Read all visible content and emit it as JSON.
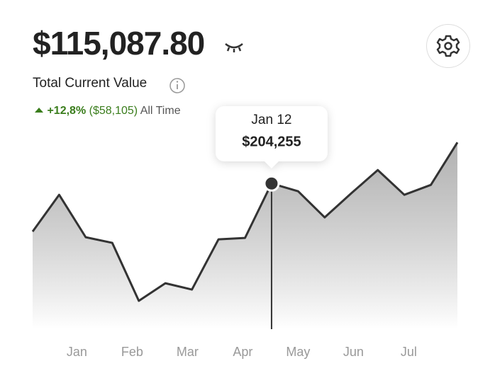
{
  "header": {
    "amount": "$115,087.80",
    "label": "Total Current Value",
    "change": "+12,8%",
    "change_amount": "($58,105)",
    "period": "All Time"
  },
  "chart_data": {
    "type": "area",
    "x": [
      0.2,
      0.68,
      1.16,
      1.64,
      2.12,
      2.6,
      3.08,
      3.56,
      4.04,
      4.52,
      5.0,
      5.48,
      5.96,
      6.44,
      6.92,
      7.4,
      7.88
    ],
    "values": [
      136800,
      188400,
      128900,
      121000,
      39700,
      64400,
      55500,
      125900,
      127900,
      204255,
      193300,
      156700,
      190400,
      223100,
      188400,
      202300,
      261800
    ],
    "value_labels": [
      null,
      null,
      null,
      null,
      null,
      null,
      null,
      null,
      null,
      "$204,255",
      null,
      null,
      null,
      null,
      null,
      null,
      null
    ],
    "point_labels": [
      null,
      null,
      null,
      null,
      null,
      null,
      null,
      null,
      null,
      "Jan 12",
      null,
      null,
      null,
      null,
      null,
      null,
      null
    ],
    "xlim": [
      0.2,
      7.88
    ],
    "xticks": [
      {
        "value": 1,
        "label": "Jan"
      },
      {
        "value": 2,
        "label": "Feb"
      },
      {
        "value": 3,
        "label": "Mar"
      },
      {
        "value": 4,
        "label": "Apr"
      },
      {
        "value": 5,
        "label": "May"
      },
      {
        "value": 6,
        "label": "Jun"
      },
      {
        "value": 7,
        "label": "Jul"
      }
    ],
    "ylim": [
      0,
      265000
    ],
    "color": "#333333"
  }
}
